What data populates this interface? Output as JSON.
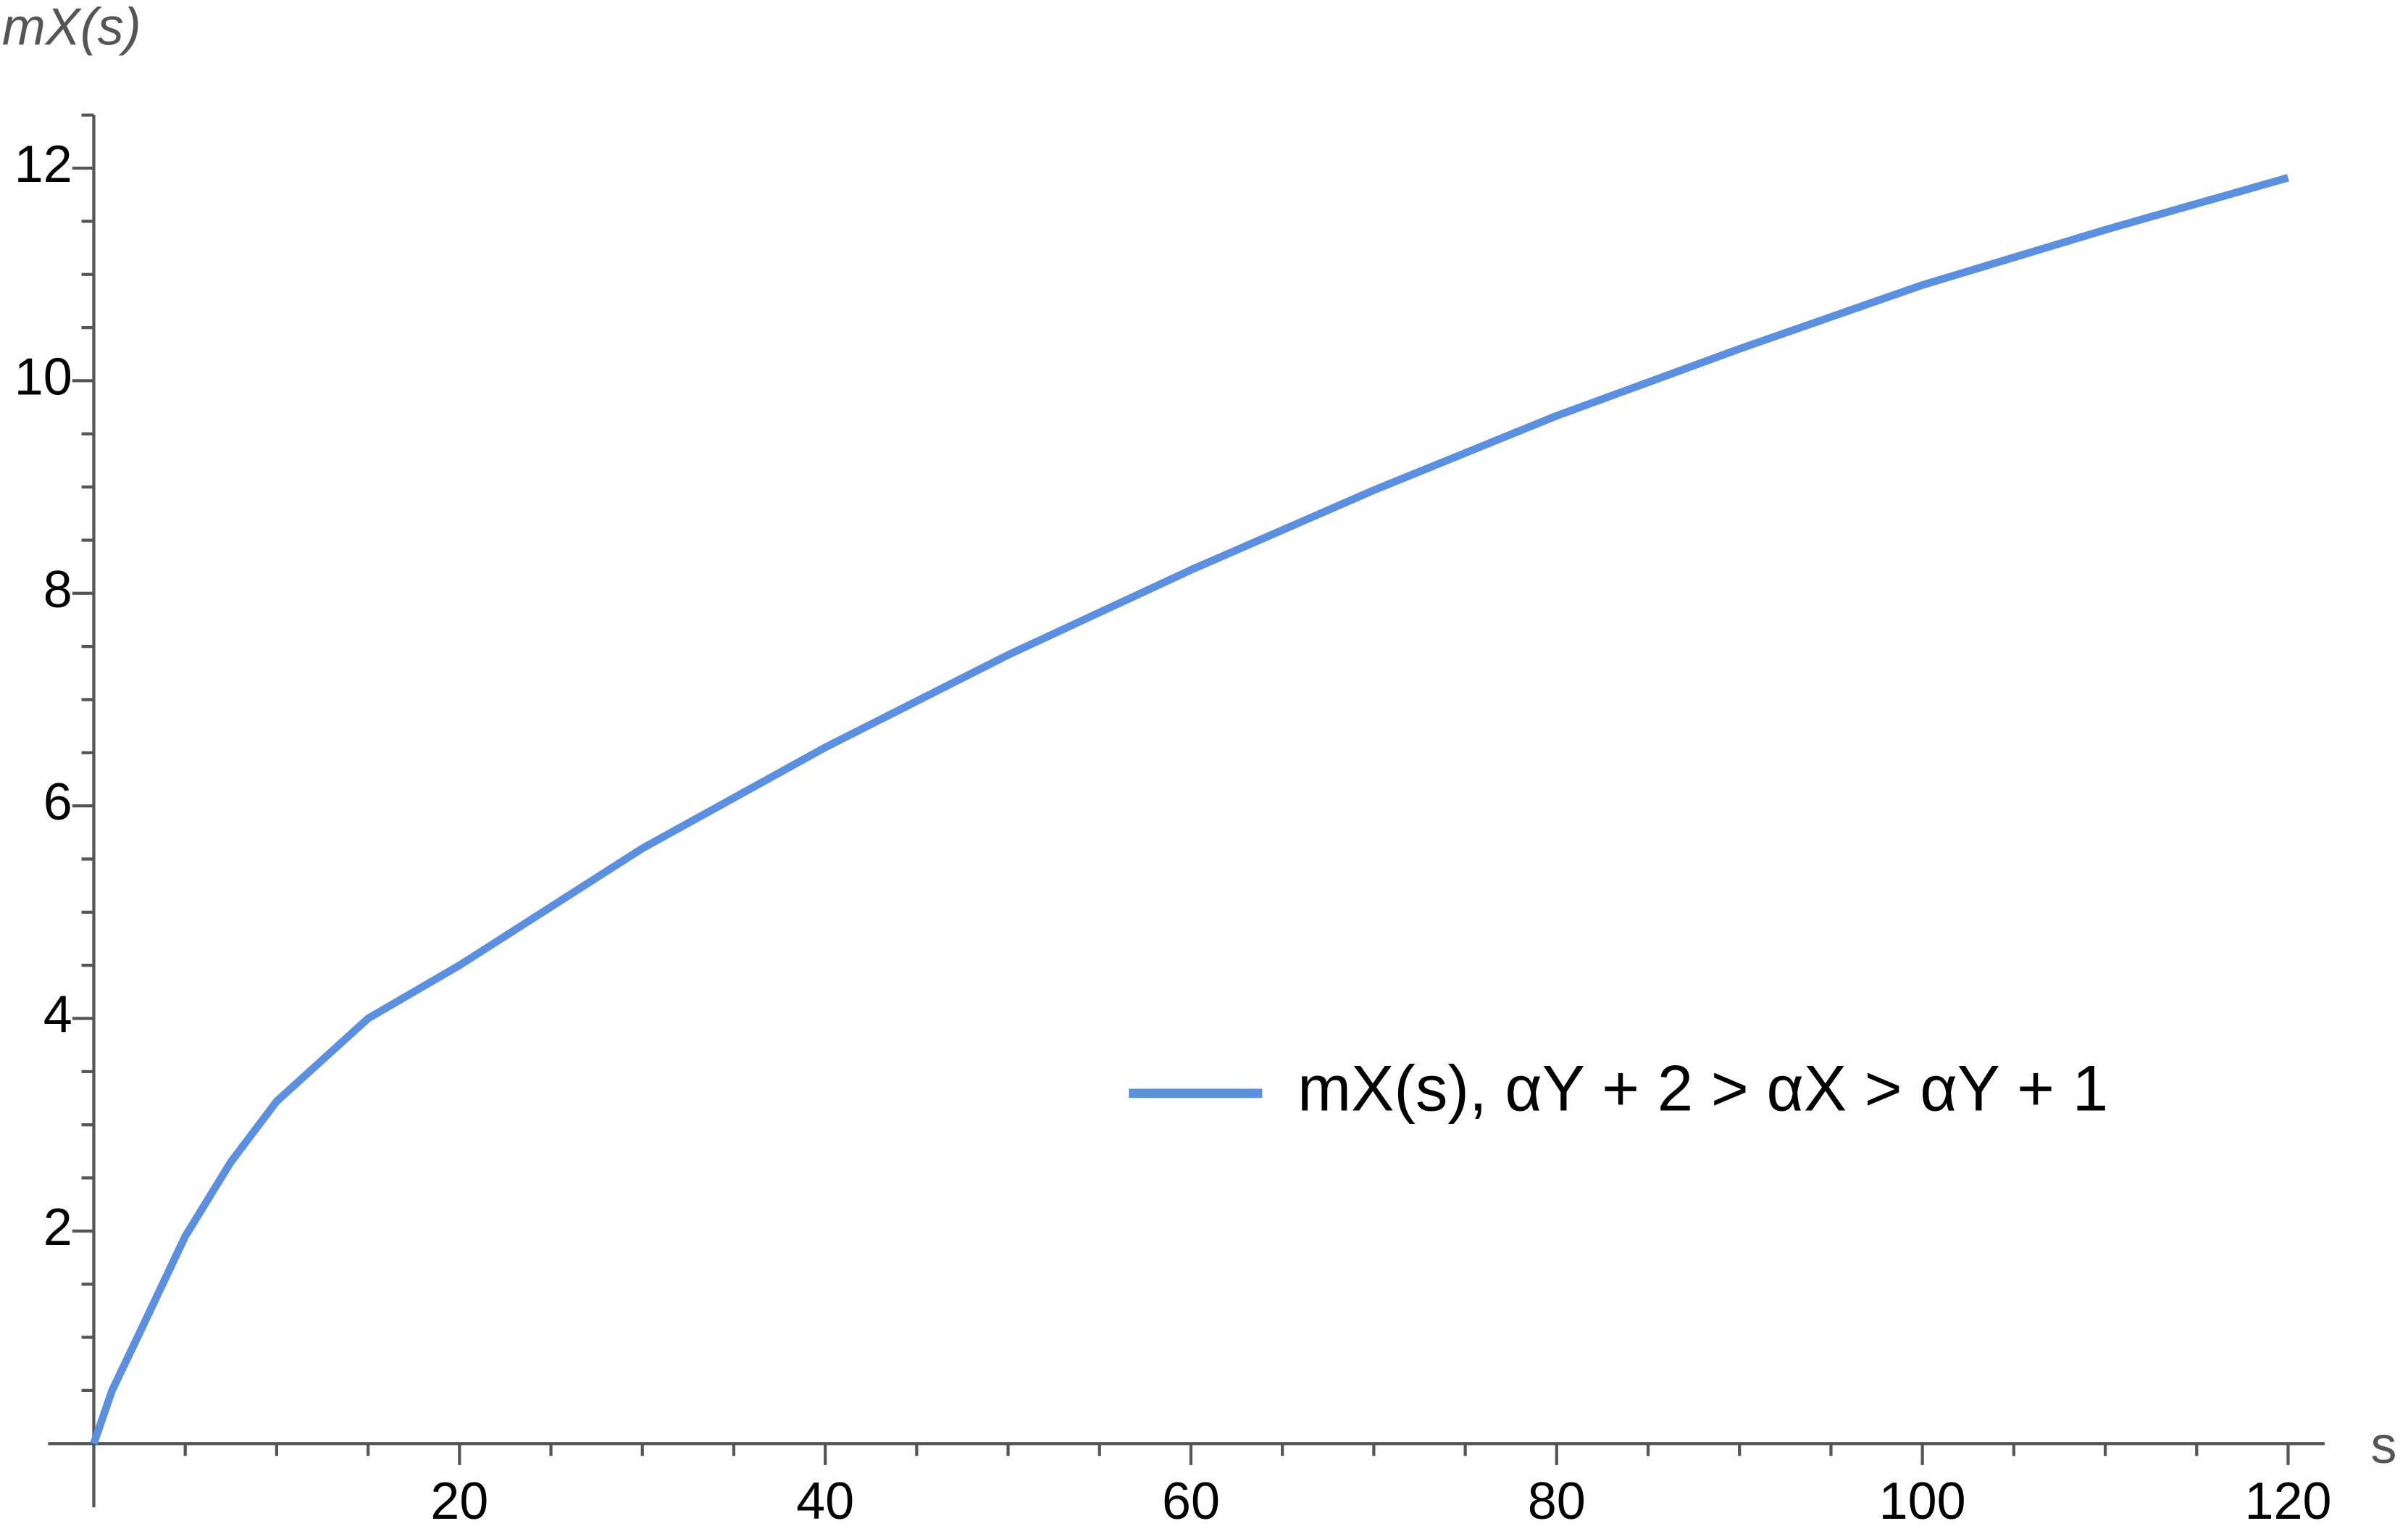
{
  "chart_data": {
    "type": "line",
    "xlabel": "s",
    "ylabel": "mX(s)",
    "x": [
      0,
      1,
      2.5,
      5,
      7.5,
      10,
      15,
      20,
      30,
      40,
      50,
      60,
      70,
      80,
      90,
      100,
      110,
      120
    ],
    "series": [
      {
        "name": "mX(s), αY + 2 > αX > αY + 1",
        "color": "#5b8fe0",
        "values": [
          0,
          0.5,
          1.04,
          1.95,
          2.65,
          3.22,
          4.0,
          4.5,
          5.6,
          6.55,
          7.42,
          8.22,
          8.97,
          9.67,
          10.3,
          10.9,
          11.42,
          11.91
        ]
      }
    ],
    "xlim": [
      -2.5,
      122
    ],
    "ylim": [
      -0.6,
      12.5
    ],
    "xticks": [
      20,
      40,
      60,
      80,
      100,
      120
    ],
    "yticks": [
      2,
      4,
      6,
      8,
      10,
      12
    ],
    "xminorticks": [
      5,
      10,
      15,
      25,
      30,
      35,
      45,
      50,
      55,
      65,
      70,
      75,
      85,
      90,
      95,
      105,
      110,
      115
    ],
    "yminorticks": [
      0.5,
      1,
      1.5,
      2.5,
      3,
      3.5,
      4.5,
      5,
      5.5,
      6.5,
      7,
      7.5,
      8.5,
      9,
      9.5,
      10.5,
      11,
      11.5,
      12.5
    ],
    "legend": "right",
    "grid": false
  }
}
